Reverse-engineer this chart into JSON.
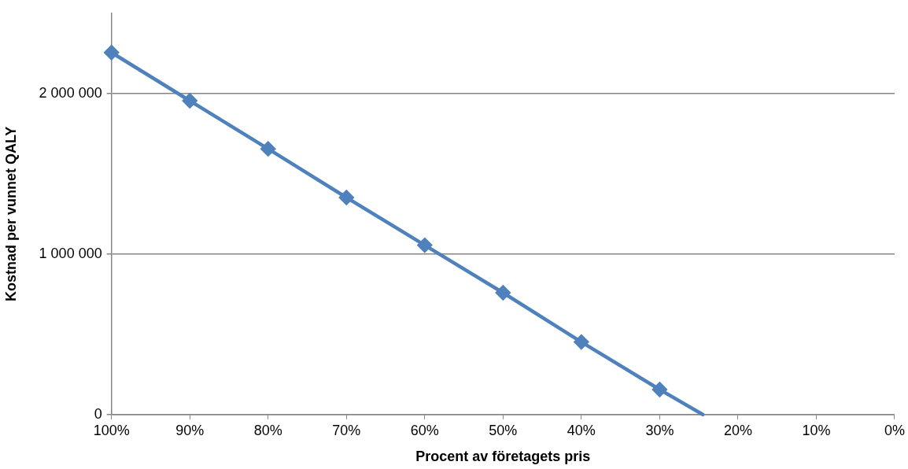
{
  "chart_data": {
    "type": "line",
    "xlabel": "Procent av företagets pris",
    "ylabel": "Kostnad per vunnet QALY",
    "series": [
      {
        "color": "#4f81bd",
        "marker": "diamond",
        "x": [
          100,
          90,
          80,
          70,
          60,
          50,
          40,
          30
        ],
        "values": [
          2255000,
          1955000,
          1655000,
          1352000,
          1055000,
          759000,
          452000,
          156000
        ]
      },
      {
        "color": "#4f81bd",
        "marker": "none",
        "x": [
          30,
          24.5
        ],
        "values": [
          156000,
          0
        ]
      }
    ],
    "xlim": [
      100,
      0
    ],
    "xticks": [
      {
        "value": 100,
        "label": "100%"
      },
      {
        "value": 90,
        "label": "90%"
      },
      {
        "value": 80,
        "label": "80%"
      },
      {
        "value": 70,
        "label": "70%"
      },
      {
        "value": 60,
        "label": "60%"
      },
      {
        "value": 50,
        "label": "50%"
      },
      {
        "value": 40,
        "label": "40%"
      },
      {
        "value": 30,
        "label": "30%"
      },
      {
        "value": 20,
        "label": "20%"
      },
      {
        "value": 10,
        "label": "10%"
      },
      {
        "value": 0,
        "label": "0%"
      }
    ],
    "ylim": [
      0,
      2500000
    ],
    "yticks": [
      0,
      {
        "value": 1000000,
        "label": "1 000 000"
      },
      {
        "value": 2000000,
        "label": "2 000 000"
      }
    ],
    "grid": "y",
    "legend": false
  }
}
